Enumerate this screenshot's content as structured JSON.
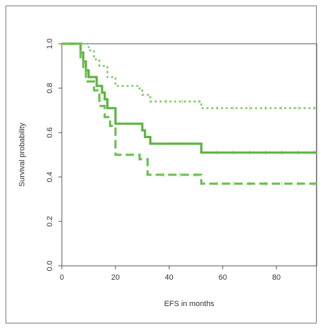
{
  "chart_data": {
    "type": "line",
    "xlabel": "EFS in months",
    "ylabel": "Survival probability",
    "xlim": [
      0,
      95
    ],
    "ylim": [
      0,
      1.0
    ],
    "x_ticks": [
      "0",
      "20",
      "40",
      "60",
      "80"
    ],
    "y_ticks": [
      "0.0",
      "0.2",
      "0.4",
      "0.6",
      "0.8",
      "1.0"
    ],
    "x_tick_values": [
      0,
      20,
      40,
      60,
      80
    ],
    "y_tick_values": [
      0,
      0.2,
      0.4,
      0.6,
      0.8,
      1.0
    ],
    "grid": false,
    "series": [
      {
        "style": "dotted",
        "color": "#7fc86a",
        "x": [
          0,
          7,
          10,
          12,
          14,
          17,
          20,
          22,
          29,
          30,
          33,
          52,
          95
        ],
        "y": [
          1.0,
          1.0,
          0.97,
          0.93,
          0.9,
          0.85,
          0.81,
          0.81,
          0.79,
          0.77,
          0.74,
          0.71,
          0.71
        ]
      },
      {
        "style": "solid",
        "color": "#5ab43c",
        "x": [
          0,
          5,
          7,
          8,
          9,
          10,
          13,
          15,
          16,
          17,
          20,
          28,
          30,
          31,
          33,
          40,
          52,
          95
        ],
        "y": [
          1.0,
          1.0,
          0.96,
          0.92,
          0.88,
          0.85,
          0.81,
          0.78,
          0.75,
          0.71,
          0.64,
          0.64,
          0.61,
          0.58,
          0.55,
          0.55,
          0.51,
          0.51
        ]
      },
      {
        "style": "dashed",
        "color": "#6cc050",
        "x": [
          0,
          5,
          7,
          8,
          9,
          12,
          14,
          16,
          18,
          20,
          29,
          32,
          52,
          95
        ],
        "y": [
          1.0,
          1.0,
          0.93,
          0.88,
          0.83,
          0.79,
          0.72,
          0.67,
          0.63,
          0.5,
          0.48,
          0.41,
          0.37,
          0.37
        ]
      }
    ]
  }
}
